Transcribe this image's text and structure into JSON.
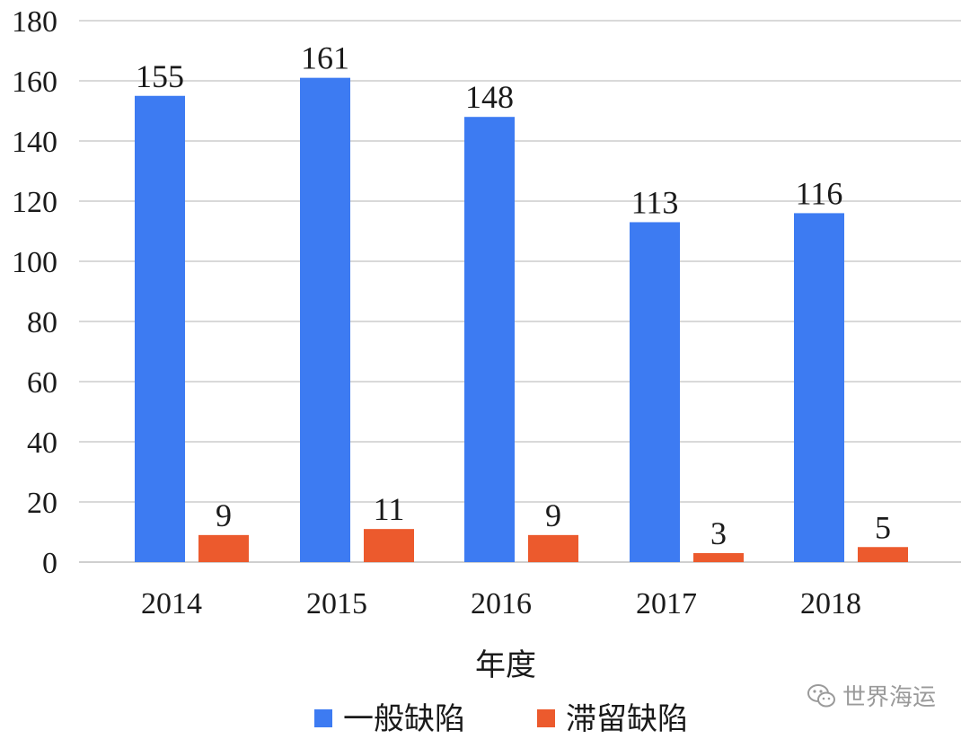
{
  "chart_data": {
    "type": "bar",
    "categories": [
      "2014",
      "2015",
      "2016",
      "2017",
      "2018"
    ],
    "series": [
      {
        "name": "一般缺陷",
        "values": [
          155,
          161,
          148,
          113,
          116
        ],
        "color": "#3d7bf2"
      },
      {
        "name": "滞留缺陷",
        "values": [
          9,
          11,
          9,
          3,
          5
        ],
        "color": "#ec5a2d"
      }
    ],
    "xlabel": "年度",
    "ylabel": "",
    "ylim": [
      0,
      180
    ],
    "yticks": [
      0,
      20,
      40,
      60,
      80,
      100,
      120,
      140,
      160,
      180
    ],
    "grid": true,
    "legend": "bottom"
  },
  "watermark": {
    "text": "世界海运",
    "icon": "wechat-icon"
  }
}
